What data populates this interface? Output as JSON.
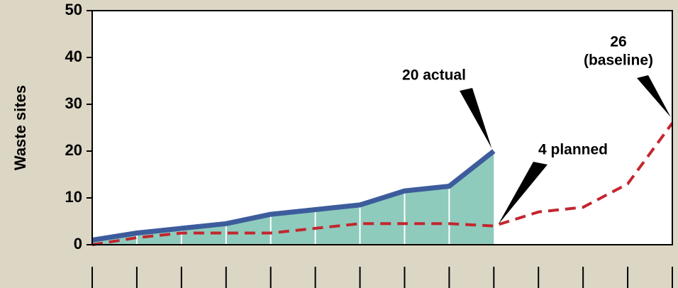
{
  "chart_data": {
    "type": "line",
    "ylabel": "Waste sites",
    "categories": [
      null,
      null,
      null,
      null,
      null,
      null,
      null,
      null,
      null,
      null,
      null,
      null,
      null,
      null
    ],
    "series": [
      {
        "name": "actual",
        "color": "#3d5c9c",
        "fill": "#8ecbbd",
        "values": [
          1,
          2.5,
          3.5,
          4.5,
          6.5,
          7.5,
          8.5,
          11.5,
          12.5,
          20,
          null,
          null,
          null,
          null
        ]
      },
      {
        "name": "planned",
        "color": "#c3262e",
        "values": [
          0,
          1.5,
          2.5,
          2.5,
          2.5,
          3.5,
          4.5,
          4.5,
          4.5,
          4,
          7,
          8,
          13,
          26
        ]
      }
    ],
    "ylim": [
      0,
      50
    ],
    "yticks": [
      0,
      10,
      20,
      30,
      40,
      50
    ],
    "annotations": [
      {
        "lines": [
          "20 actual"
        ]
      },
      {
        "lines": [
          "4 planned"
        ]
      },
      {
        "lines": [
          "26",
          "(baseline)"
        ]
      }
    ]
  }
}
